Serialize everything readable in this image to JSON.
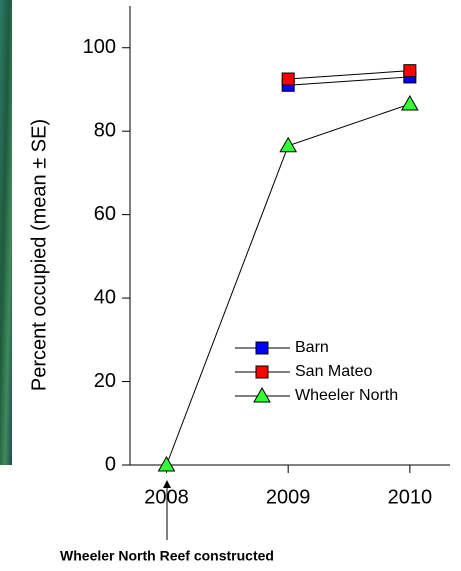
{
  "chart_data": {
    "type": "line",
    "ylabel": "Percent occupied (mean ± SE)",
    "annotation": "Wheeler North Reef constructed",
    "x": [
      2008,
      2009,
      2010
    ],
    "xlim": [
      2007.7,
      2010.33
    ],
    "xticks": [
      2008,
      2009,
      2010
    ],
    "ylim": [
      0,
      110
    ],
    "yticks": [
      0,
      20,
      40,
      60,
      80,
      100
    ],
    "legend": "center",
    "series": [
      {
        "name": "Barn",
        "color": "#0000ff",
        "marker": "square",
        "values": [
          null,
          91,
          93
        ]
      },
      {
        "name": "San Mateo",
        "color": "#ff0000",
        "marker": "square",
        "values": [
          null,
          92.5,
          94.5
        ]
      },
      {
        "name": "Wheeler North",
        "color": "#33ff33",
        "marker": "triangle",
        "values": [
          0,
          76.5,
          86.5
        ]
      }
    ]
  }
}
